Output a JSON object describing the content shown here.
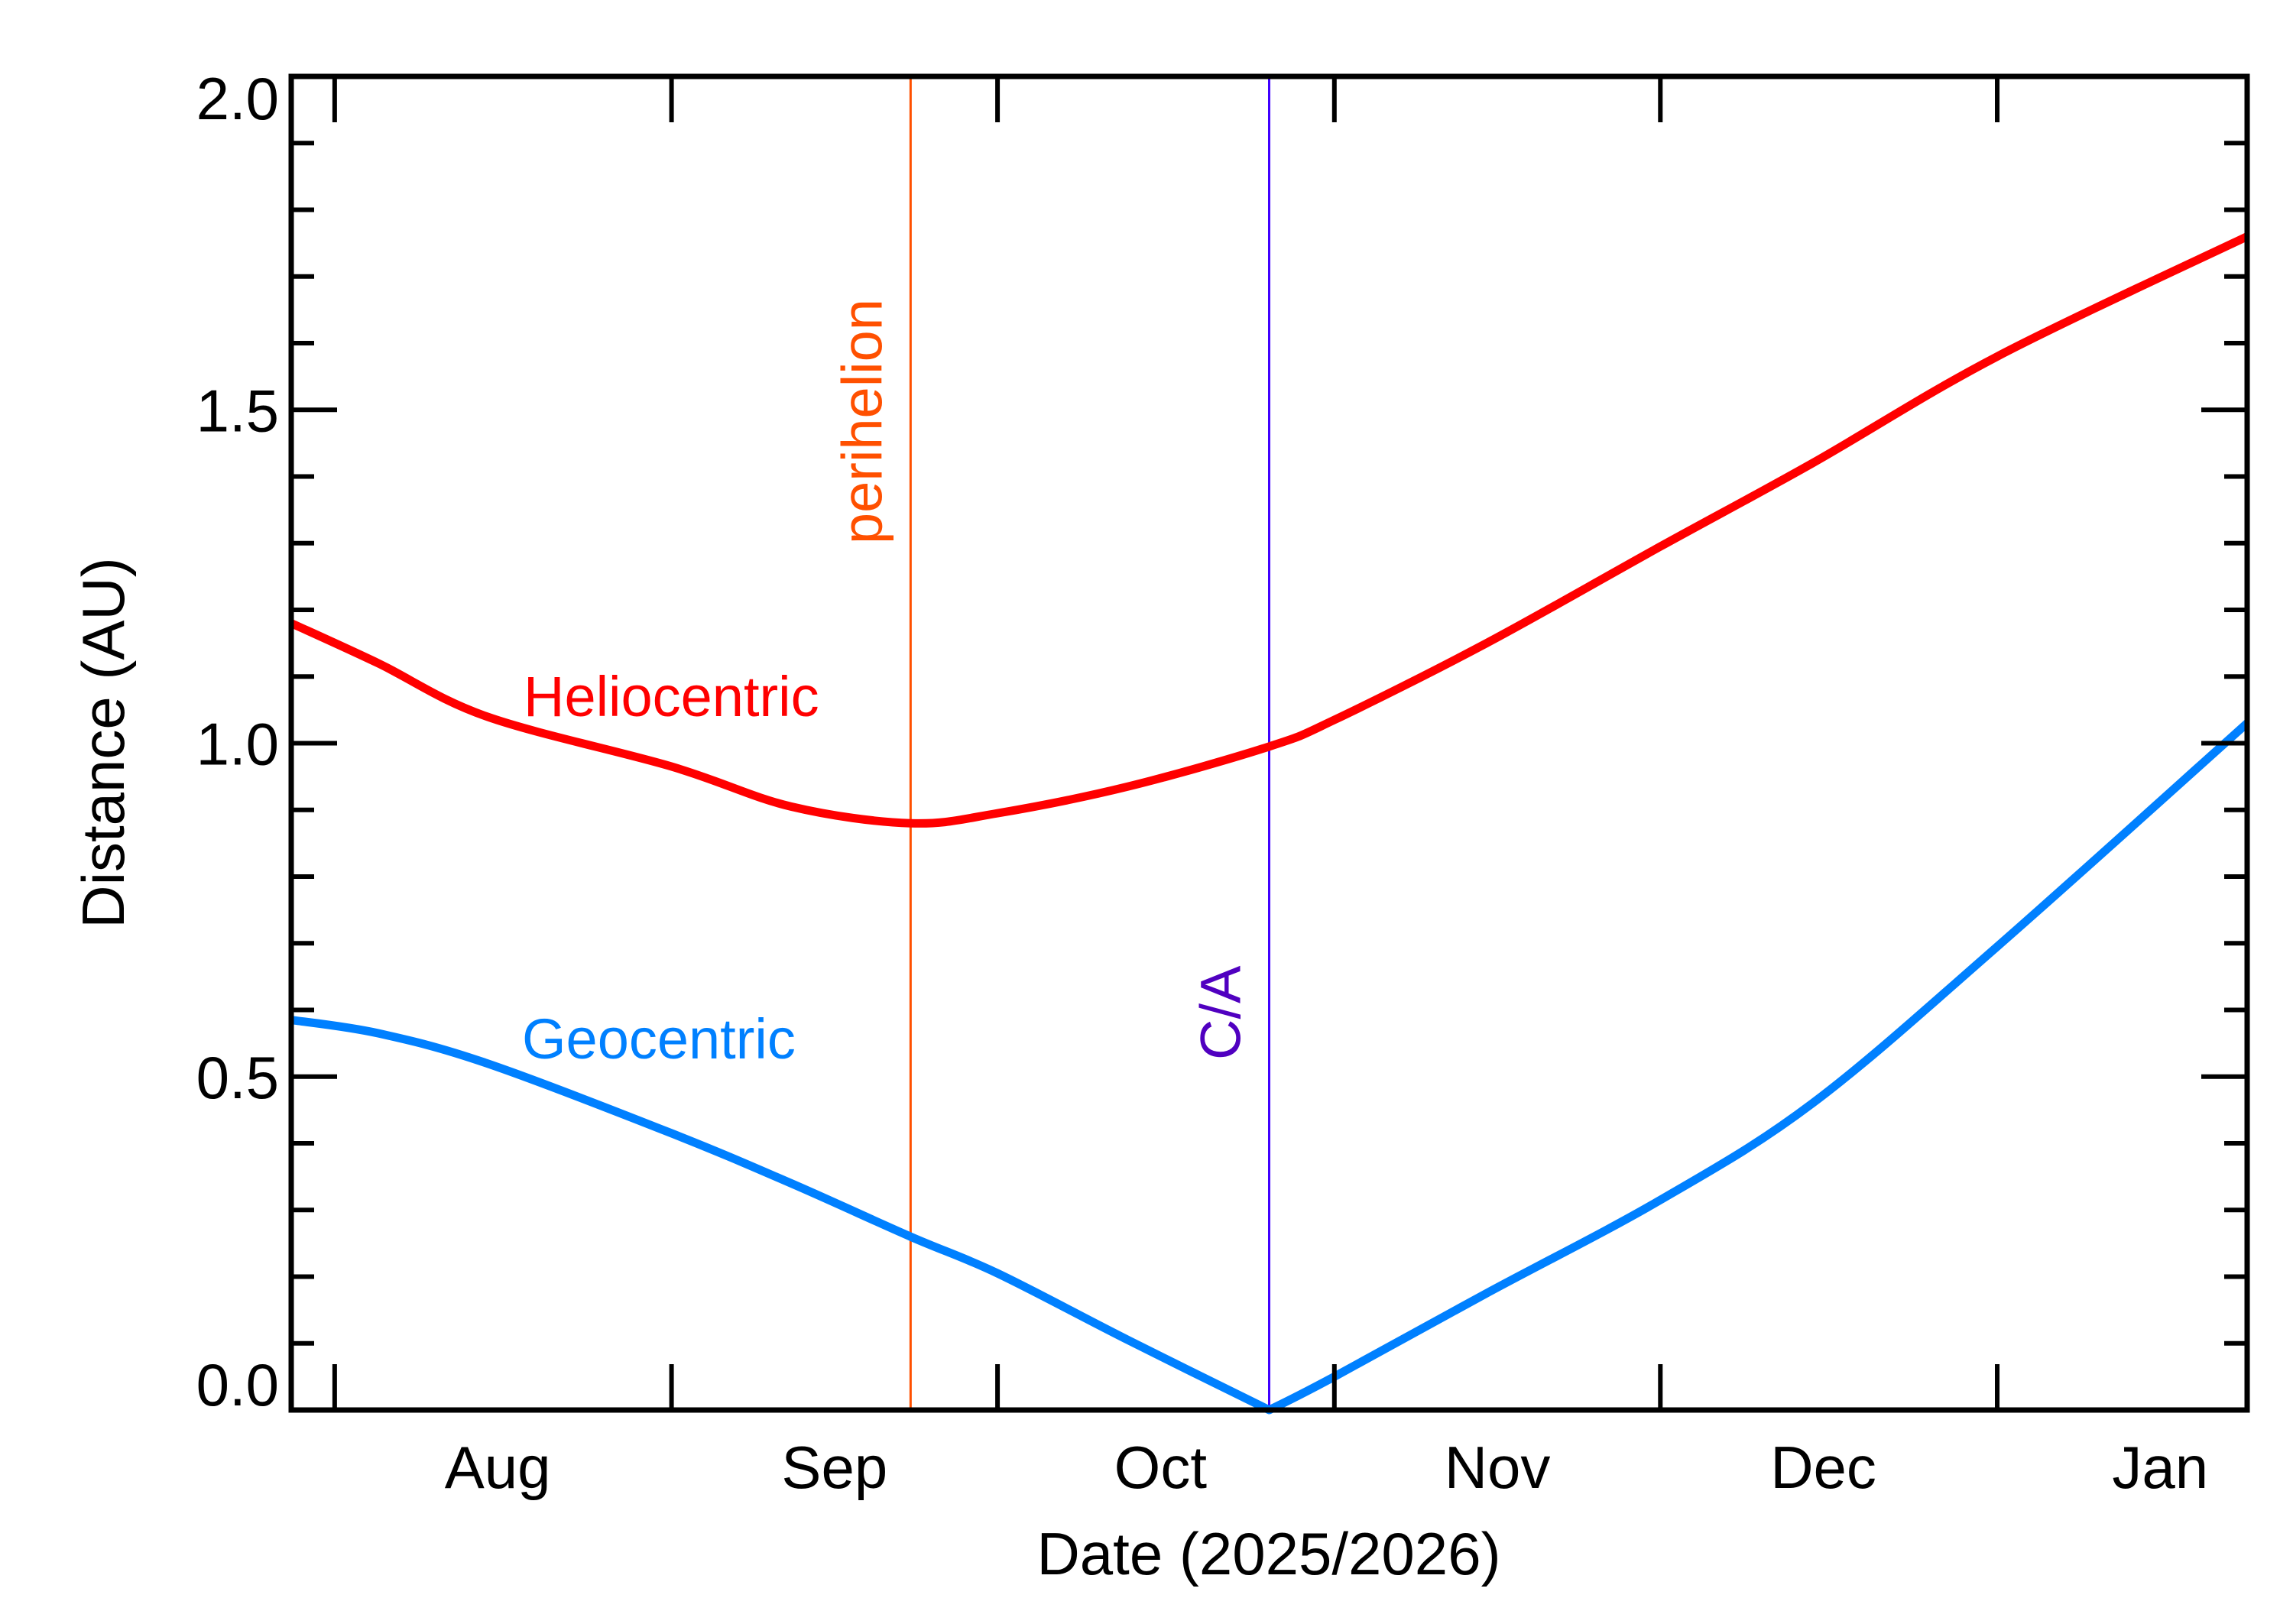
{
  "chart_data": {
    "type": "line",
    "xlabel": "Date (2025/2026)",
    "ylabel": "Distance (AU)",
    "xlim": [
      "2025-07-28",
      "2026-01-24"
    ],
    "ylim": [
      0.0,
      2.0
    ],
    "grid": false,
    "x_tick_labels": [
      {
        "label": "Aug",
        "month_start": "2025-08-01"
      },
      {
        "label": "Sep",
        "month_start": "2025-09-01"
      },
      {
        "label": "Oct",
        "month_start": "2025-10-01"
      },
      {
        "label": "Nov",
        "month_start": "2025-11-01"
      },
      {
        "label": "Dec",
        "month_start": "2025-12-01"
      },
      {
        "label": "Jan",
        "month_start": "2026-01-01"
      }
    ],
    "y_tick_labels": [
      "0.0",
      "0.5",
      "1.0",
      "1.5",
      "2.0"
    ],
    "y_minor_step": 0.1,
    "series": [
      {
        "name": "Heliocentric",
        "color": "#ff0000",
        "points": [
          [
            "2025-07-28",
            1.18
          ],
          [
            "2025-08-05",
            1.12
          ],
          [
            "2025-08-15",
            1.04
          ],
          [
            "2025-09-01",
            0.965
          ],
          [
            "2025-09-12",
            0.905
          ],
          [
            "2025-09-23",
            0.88
          ],
          [
            "2025-10-01",
            0.895
          ],
          [
            "2025-10-13",
            0.935
          ],
          [
            "2025-10-26",
            0.995
          ],
          [
            "2025-11-01",
            1.035
          ],
          [
            "2025-11-15",
            1.15
          ],
          [
            "2025-12-01",
            1.295
          ],
          [
            "2025-12-15",
            1.42
          ],
          [
            "2026-01-01",
            1.58
          ],
          [
            "2026-01-24",
            1.76
          ]
        ]
      },
      {
        "name": "Geocentric",
        "color": "#0080ff",
        "points": [
          [
            "2025-07-28",
            0.585
          ],
          [
            "2025-08-05",
            0.565
          ],
          [
            "2025-08-15",
            0.52
          ],
          [
            "2025-09-01",
            0.415
          ],
          [
            "2025-09-12",
            0.34
          ],
          [
            "2025-09-23",
            0.26
          ],
          [
            "2025-10-01",
            0.205
          ],
          [
            "2025-10-13",
            0.105
          ],
          [
            "2025-10-26",
            0.0
          ],
          [
            "2025-11-01",
            0.05
          ],
          [
            "2025-11-15",
            0.175
          ],
          [
            "2025-12-01",
            0.315
          ],
          [
            "2025-12-15",
            0.46
          ],
          [
            "2026-01-01",
            0.695
          ],
          [
            "2026-01-24",
            1.03
          ]
        ]
      }
    ],
    "markers": [
      {
        "label": "perihelion",
        "date": "2025-09-23",
        "color": "#ff5000"
      },
      {
        "label": "C/A",
        "date": "2025-10-26",
        "color": "#4000ff",
        "label_color": "#5000c0"
      }
    ]
  }
}
